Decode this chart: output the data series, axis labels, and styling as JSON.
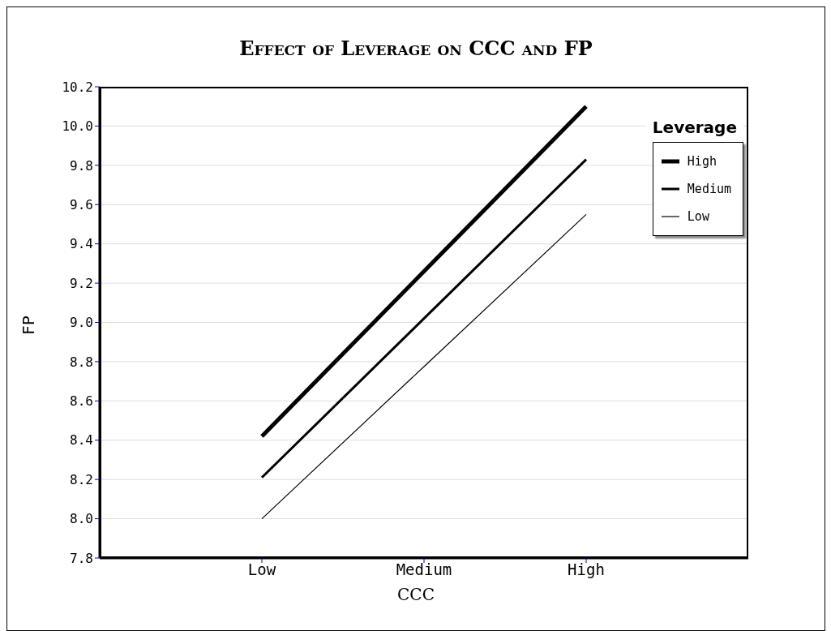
{
  "chart_data": {
    "type": "line",
    "title": "Effect of Leverage on CCC and FP",
    "xlabel": "CCC",
    "ylabel": "FP",
    "legend_title": "Leverage",
    "categories": [
      "Low",
      "Medium",
      "High"
    ],
    "series": [
      {
        "name": "High",
        "color": "#000000",
        "values": [
          8.42,
          9.26,
          10.1
        ]
      },
      {
        "name": "Medium",
        "color": "#000000",
        "values": [
          8.21,
          9.02,
          9.83
        ]
      },
      {
        "name": "Low",
        "color": "#000000",
        "values": [
          8.0,
          8.775,
          9.55
        ]
      }
    ],
    "ylim": [
      7.8,
      10.2
    ],
    "yticks": [
      7.8,
      {
        "value": 8,
        "label": "8.0"
      },
      8.2,
      8.4,
      8.6,
      8.8,
      {
        "value": 9,
        "label": "9.0"
      },
      9.2,
      9.4,
      9.6,
      9.8,
      {
        "value": 10,
        "label": "10.0"
      },
      10.2
    ],
    "grid": "y",
    "legend": "top right",
    "marker": "none",
    "line_style": "solid"
  }
}
